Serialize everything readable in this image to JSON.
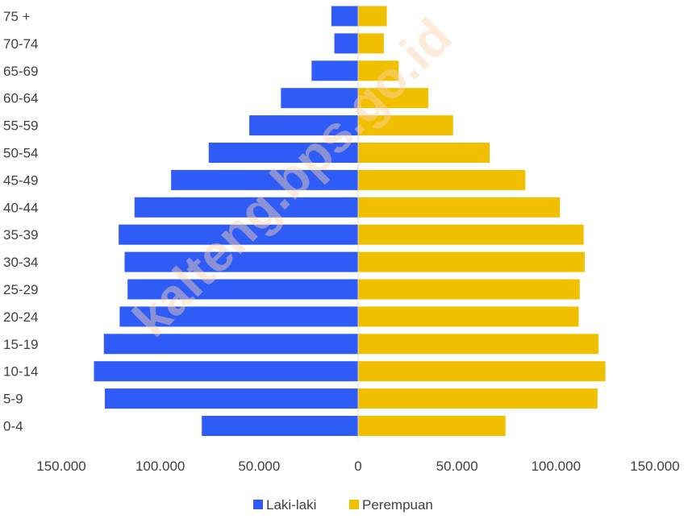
{
  "watermark": "kalteng.bps.go.id",
  "chart_data": {
    "type": "bar",
    "orientation": "horizontal",
    "subtype": "population-pyramid",
    "categories": [
      "0-4",
      "5-9",
      "10-14",
      "15-19",
      "20-24",
      "25-29",
      "30-34",
      "35-39",
      "40-44",
      "45-49",
      "50-54",
      "55-59",
      "60-64",
      "65-69",
      "70-74",
      "75 +"
    ],
    "series": [
      {
        "name": "Laki-laki",
        "color": "#2f5cf6",
        "values": [
          79000,
          128000,
          133500,
          128500,
          120500,
          116500,
          118000,
          121000,
          113000,
          94500,
          75500,
          55000,
          39000,
          23500,
          12000,
          13500
        ]
      },
      {
        "name": "Perempuan",
        "color": "#f0c000",
        "values": [
          74500,
          121000,
          125000,
          121500,
          111500,
          112000,
          114500,
          114000,
          102000,
          84500,
          66500,
          48000,
          35500,
          20500,
          13000,
          14500
        ]
      }
    ],
    "xlim": [
      -150000,
      150000
    ],
    "x_ticks": [
      {
        "value": -150000,
        "label": "150.000"
      },
      {
        "value": -100000,
        "label": "100.000"
      },
      {
        "value": -50000,
        "label": "50.000"
      },
      {
        "value": 0,
        "label": "0"
      },
      {
        "value": 50000,
        "label": "50.000"
      },
      {
        "value": 100000,
        "label": "100.000"
      },
      {
        "value": 150000,
        "label": "150.000"
      }
    ],
    "legend_position": "bottom",
    "grid": false
  }
}
